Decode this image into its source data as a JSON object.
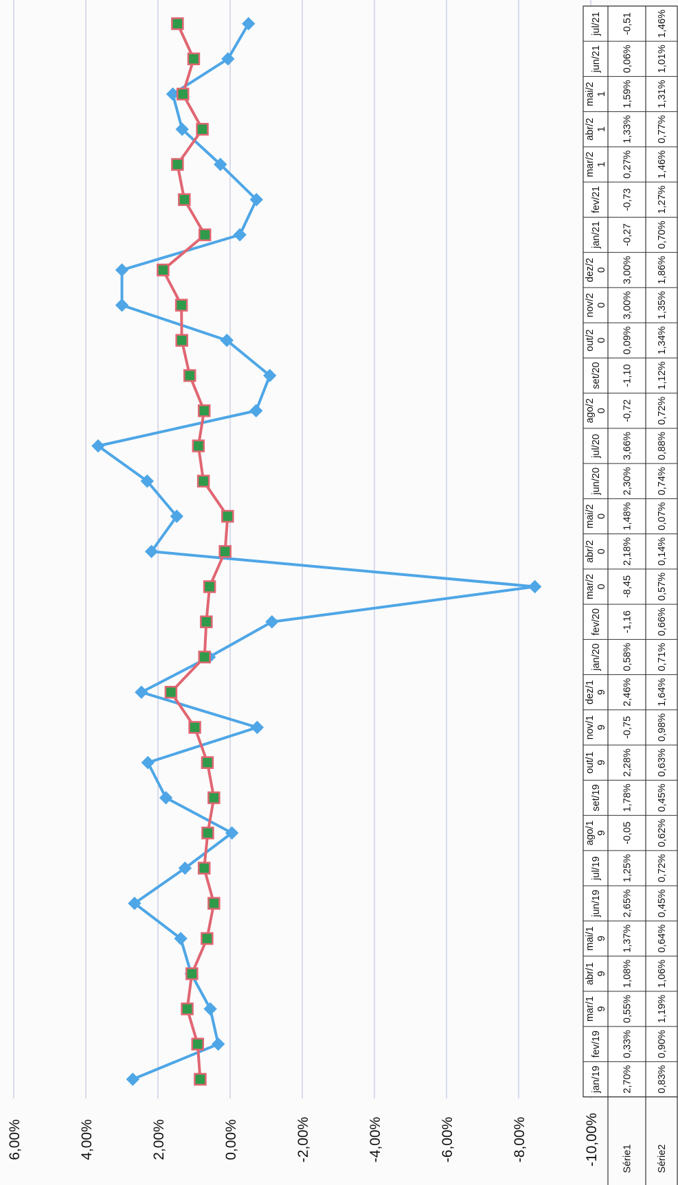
{
  "chart_data": {
    "type": "line",
    "title": "",
    "xlabel": "",
    "ylabel": "",
    "categories": [
      "jan/19",
      "fev/19",
      "mar/19",
      "abr/19",
      "mai/19",
      "jun/19",
      "jul/19",
      "ago/19",
      "set/19",
      "out/19",
      "nov/19",
      "dez/19",
      "jan/20",
      "fev/20",
      "mar/20",
      "abr/20",
      "mai/20",
      "jun/20",
      "jul/20",
      "ago/20",
      "set/20",
      "out/20",
      "nov/20",
      "dez/20",
      "jan/21",
      "fev/21",
      "mar/21",
      "abr/21",
      "mai/21",
      "jun/21",
      "jul/21"
    ],
    "category_labels": [
      [
        "jan/19"
      ],
      [
        "fev/19"
      ],
      [
        "mar/1",
        "9"
      ],
      [
        "abr/1",
        "9"
      ],
      [
        "mai/1",
        "9"
      ],
      [
        "jun/19"
      ],
      [
        "jul/19"
      ],
      [
        "ago/1",
        "9"
      ],
      [
        "set/19"
      ],
      [
        "out/1",
        "9"
      ],
      [
        "nov/1",
        "9"
      ],
      [
        "dez/1",
        "9"
      ],
      [
        "jan/20"
      ],
      [
        "fev/20"
      ],
      [
        "mar/2",
        "0"
      ],
      [
        "abr/2",
        "0"
      ],
      [
        "mai/2",
        "0"
      ],
      [
        "jun/20"
      ],
      [
        "jul/20"
      ],
      [
        "ago/2",
        "0"
      ],
      [
        "set/20"
      ],
      [
        "out/2",
        "0"
      ],
      [
        "nov/2",
        "0"
      ],
      [
        "dez/2",
        "0"
      ],
      [
        "jan/21"
      ],
      [
        "fev/21"
      ],
      [
        "mar/2",
        "1"
      ],
      [
        "abr/2",
        "1"
      ],
      [
        "mai/2",
        "1"
      ],
      [
        "jun/21"
      ],
      [
        "jul/21"
      ]
    ],
    "series": [
      {
        "name": "Série1",
        "color": "#4ea6e6",
        "marker": "diamond",
        "values": [
          2.7,
          0.33,
          0.55,
          1.08,
          1.37,
          2.65,
          1.25,
          -0.05,
          1.78,
          2.28,
          -0.75,
          2.46,
          0.58,
          -1.16,
          -8.45,
          2.18,
          1.48,
          2.3,
          3.66,
          -0.72,
          -1.1,
          0.09,
          3.0,
          3.0,
          -0.27,
          -0.73,
          0.27,
          1.33,
          1.59,
          0.06,
          -0.51
        ],
        "labels": [
          "2,70%",
          "0,33%",
          "0,55%",
          "1,08%",
          "1,37%",
          "2,65%",
          "1,25%",
          "-0,05",
          "1,78%",
          "2,28%",
          "-0,75",
          "2,46%",
          "0,58%",
          "-1,16",
          "-8,45",
          "2,18%",
          "1,48%",
          "2,30%",
          "3,66%",
          "-0,72",
          "-1,10",
          "0,09%",
          "3,00%",
          "3,00%",
          "-0,27",
          "-0,73",
          "0,27%",
          "1,33%",
          "1,59%",
          "0,06%",
          "-0,51"
        ]
      },
      {
        "name": "Série2",
        "color": "#e06672",
        "marker_fill": "#2f9a4a",
        "marker": "square",
        "values": [
          0.83,
          0.9,
          1.19,
          1.06,
          0.64,
          0.45,
          0.72,
          0.62,
          0.45,
          0.63,
          0.98,
          1.64,
          0.71,
          0.66,
          0.57,
          0.14,
          0.07,
          0.74,
          0.88,
          0.72,
          1.12,
          1.34,
          1.35,
          1.86,
          0.7,
          1.27,
          1.46,
          0.77,
          1.31,
          1.01,
          1.46
        ],
        "labels": [
          "0,83%",
          "0,90%",
          "1,19%",
          "1,06%",
          "0,64%",
          "0,45%",
          "0,72%",
          "0,62%",
          "0,45%",
          "0,63%",
          "0,98%",
          "1,64%",
          "0,71%",
          "0,66%",
          "0,57%",
          "0,14%",
          "0,07%",
          "0,74%",
          "0,88%",
          "0,72%",
          "1,12%",
          "1,34%",
          "1,35%",
          "1,86%",
          "0,70%",
          "1,27%",
          "1,46%",
          "0,77%",
          "1,31%",
          "1,01%",
          "1,46%"
        ]
      }
    ],
    "y_ticks": [
      "6,00%",
      "4,00%",
      "2,00%",
      "0,00%",
      "-2,00%",
      "-4,00%",
      "-6,00%",
      "-8,00%",
      "-10,00%"
    ],
    "ylim": [
      -10,
      6
    ],
    "grid": true,
    "orientation": "rotated 90° clockwise (value axis runs left-to-right, categories run bottom-to-top)",
    "legend": "data table with legend keys"
  },
  "colors": {
    "gridline": "#b6b8dd",
    "table_border": "#333333"
  }
}
